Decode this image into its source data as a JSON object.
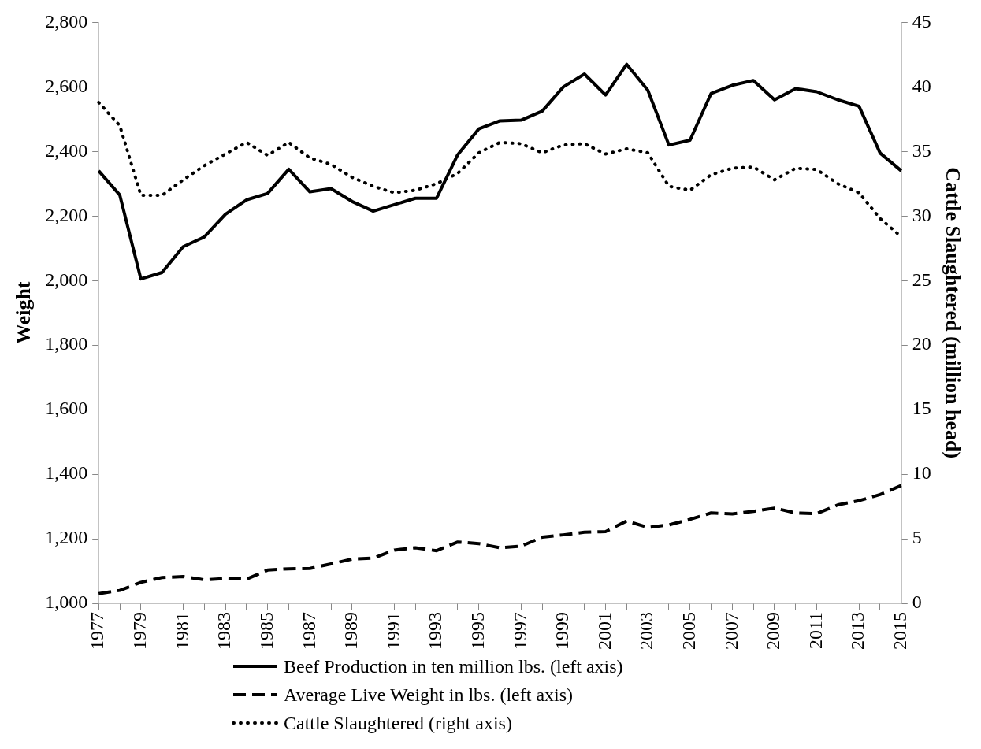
{
  "chart_data": {
    "type": "line",
    "ylabel": "Weight",
    "y2label": "Cattle Slaughtered (million head)",
    "categories": [
      "1977",
      null,
      "1979",
      null,
      "1981",
      null,
      "1983",
      null,
      "1985",
      null,
      "1987",
      null,
      "1989",
      null,
      "1991",
      null,
      "1993",
      null,
      "1995",
      null,
      "1997",
      null,
      "1999",
      null,
      "2001",
      null,
      "2003",
      null,
      "2005",
      null,
      "2007",
      null,
      "2009",
      null,
      "2011",
      null,
      "2013",
      null,
      "2015"
    ],
    "series": [
      {
        "name": "Beef Production in ten million lbs. (left axis)",
        "color": "#000000",
        "line_style": "solid",
        "values": [
          2340,
          2265,
          2005,
          2025,
          2105,
          2135,
          2205,
          2250,
          2270,
          2345,
          2275,
          2285,
          2245,
          2215,
          2235,
          2255,
          2255,
          2390,
          2470,
          2495,
          2497,
          2525,
          2600,
          2640,
          2575,
          2670,
          2590,
          2420,
          2435,
          2580,
          2605,
          2620,
          2560,
          2595,
          2585,
          2560,
          2540,
          2395,
          2340
        ]
      },
      {
        "name": "Average Live Weight in lbs. (left axis)",
        "color": "#000000",
        "line_style": "dashed",
        "values": [
          1030,
          1040,
          1065,
          1080,
          1083,
          1073,
          1077,
          1075,
          1103,
          1107,
          1108,
          1122,
          1137,
          1140,
          1165,
          1172,
          1163,
          1190,
          1185,
          1172,
          1177,
          1205,
          1212,
          1220,
          1222,
          1255,
          1235,
          1243,
          1260,
          1280,
          1277,
          1285,
          1295,
          1280,
          1278,
          1305,
          1318,
          1337,
          1365
        ]
      },
      {
        "name": "Cattle Slaughtered (right axis)",
        "color": "#000000",
        "line_style": "dotted",
        "axis": "y2",
        "values": [
          38.8,
          37.0,
          31.6,
          31.6,
          32.8,
          33.9,
          34.8,
          35.7,
          34.7,
          35.7,
          34.5,
          34.0,
          33.0,
          32.3,
          31.8,
          32.0,
          32.5,
          33.3,
          34.9,
          35.7,
          35.6,
          34.9,
          35.5,
          35.6,
          34.8,
          35.2,
          34.9,
          32.3,
          32.0,
          33.2,
          33.7,
          33.8,
          32.8,
          33.7,
          33.6,
          32.5,
          31.8,
          29.8,
          28.4
        ]
      }
    ],
    "ylim": [
      1000,
      2800
    ],
    "yticks": [
      {
        "value": 1000,
        "label": "1,000"
      },
      {
        "value": 1200,
        "label": "1,200"
      },
      {
        "value": 1400,
        "label": "1,400"
      },
      {
        "value": 1600,
        "label": "1,600"
      },
      {
        "value": 1800,
        "label": "1,800"
      },
      {
        "value": 2000,
        "label": "2,000"
      },
      {
        "value": 2200,
        "label": "2,200"
      },
      {
        "value": 2400,
        "label": "2,400"
      },
      {
        "value": 2600,
        "label": "2,600"
      },
      {
        "value": 2800,
        "label": "2,800"
      }
    ],
    "y2lim": [
      0,
      45
    ],
    "y2ticks": [
      0,
      5,
      10,
      15,
      20,
      25,
      30,
      35,
      40,
      45
    ],
    "grid": false,
    "legend": "bottom",
    "marker": "none"
  }
}
